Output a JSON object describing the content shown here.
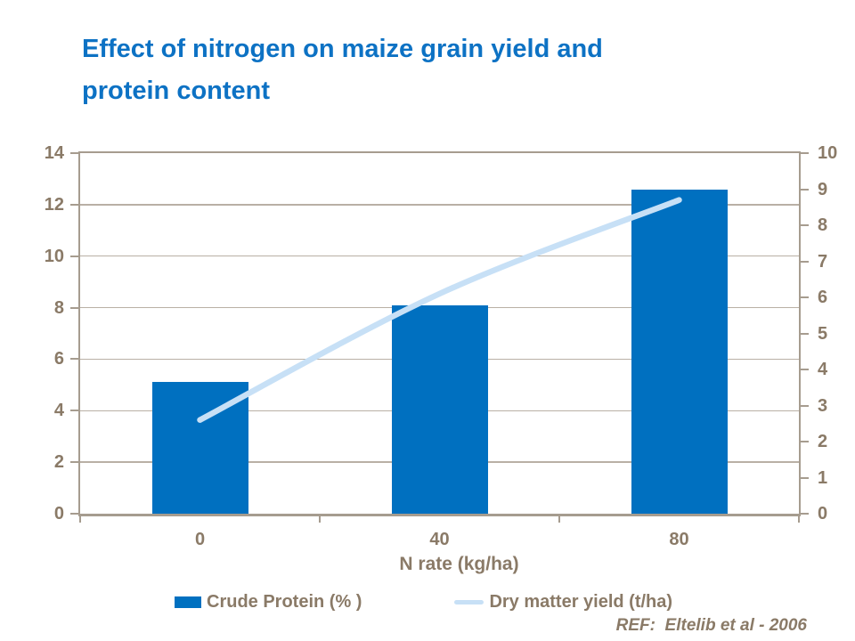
{
  "title": "Effect of nitrogen on maize grain yield and\nprotein content",
  "colors": {
    "title": "#0d72c4",
    "bar": "#0070c0",
    "line": "#c7e0f6",
    "axis_text": "#8a7a67",
    "gridline": "#b9b0a5",
    "axis_border": "#a69c8f"
  },
  "chart_data": {
    "type": "combo",
    "categories": [
      "0",
      "40",
      "80"
    ],
    "series": [
      {
        "name": "Crude Protein (% )",
        "type": "bar",
        "axis": "left",
        "color": "#0070c0",
        "values": [
          5.1,
          8.1,
          12.6
        ]
      },
      {
        "name": "Dry matter yield (t/ha)",
        "type": "line",
        "axis": "right",
        "color": "#c7e0f6",
        "values": [
          2.6,
          6.1,
          8.7
        ]
      }
    ],
    "title": "Effect of nitrogen on maize grain yield and protein content",
    "xlabel": "N rate (kg/ha)",
    "ylabel_left": "",
    "ylabel_right": "",
    "left_axis": {
      "min": 0,
      "max": 14,
      "tick_step": 2,
      "ticks": [
        0,
        2,
        4,
        6,
        8,
        10,
        12,
        14
      ]
    },
    "right_axis": {
      "min": 0,
      "max": 10,
      "tick_step": 1,
      "ticks": [
        0,
        1,
        2,
        3,
        4,
        5,
        6,
        7,
        8,
        9,
        10
      ]
    },
    "grid": "horizontal gridlines at left-axis even values",
    "legend_position": "bottom"
  },
  "legend": {
    "items": [
      {
        "label": "Crude Protein (% )"
      },
      {
        "label": "Dry matter yield (t/ha)"
      }
    ]
  },
  "footer": {
    "ref": "REF:  Eltelib et al - 2006"
  }
}
